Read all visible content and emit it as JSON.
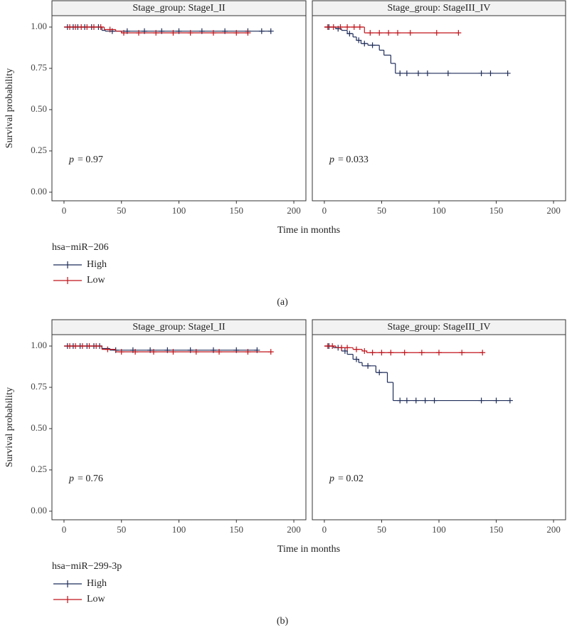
{
  "figures": [
    {
      "caption": "(a)",
      "legend_title": "hsa−miR−206",
      "xlabel": "Time in months",
      "ylabel": "Survival probability"
    },
    {
      "caption": "(b)",
      "legend_title": "hsa−miR−299-3p",
      "xlabel": "Time in months",
      "ylabel": "Survival probability"
    }
  ],
  "chart_data": [
    {
      "type": "step",
      "title": "Stage_group: StageI_II",
      "p_symbol": "p",
      "p_text": "= 0.97",
      "xlim": [
        -10.5,
        210.5
      ],
      "ylim": [
        -0.052,
        1.069
      ],
      "xticks": [
        0,
        50,
        100,
        150,
        200
      ],
      "yticks": [
        {
          "value": 0,
          "label": "0.00"
        },
        {
          "value": 0.25,
          "label": "0.25"
        },
        {
          "value": 0.5,
          "label": "0.50"
        },
        {
          "value": 0.75,
          "label": "0.75"
        },
        {
          "value": 1,
          "label": "1.00"
        }
      ],
      "series": [
        {
          "name": "High",
          "color": "#1f2d5a",
          "x": [
            0,
            33,
            36,
            180
          ],
          "values": [
            1,
            0.98,
            0.975,
            0.975
          ],
          "censor_x": [
            3,
            8,
            12,
            18,
            24,
            30,
            42,
            55,
            70,
            85,
            100,
            120,
            140,
            160,
            172,
            180
          ],
          "censor_y": [
            1,
            1,
            1,
            1,
            1,
            1,
            0.975,
            0.975,
            0.975,
            0.975,
            0.975,
            0.975,
            0.975,
            0.975,
            0.975,
            0.975
          ]
        },
        {
          "name": "Low",
          "color": "#c0141b",
          "x": [
            0,
            35,
            45,
            50,
            160
          ],
          "values": [
            1,
            0.985,
            0.975,
            0.965,
            0.965
          ],
          "censor_x": [
            5,
            10,
            15,
            20,
            26,
            32,
            40,
            52,
            65,
            80,
            95,
            110,
            130,
            150,
            160
          ],
          "censor_y": [
            1,
            1,
            1,
            1,
            1,
            1,
            0.985,
            0.965,
            0.965,
            0.965,
            0.965,
            0.965,
            0.965,
            0.965,
            0.965
          ]
        }
      ]
    },
    {
      "type": "step",
      "title": "Stage_group: StageIII_IV",
      "p_symbol": "p",
      "p_text": "= 0.033",
      "xlim": [
        -10.5,
        210.5
      ],
      "ylim": [
        -0.052,
        1.069
      ],
      "xticks": [
        0,
        50,
        100,
        150,
        200
      ],
      "series": [
        {
          "name": "High",
          "color": "#1f2d5a",
          "x": [
            0,
            10,
            15,
            20,
            25,
            28,
            32,
            38,
            48,
            52,
            58,
            62,
            160
          ],
          "values": [
            1,
            0.99,
            0.98,
            0.96,
            0.94,
            0.92,
            0.9,
            0.89,
            0.86,
            0.83,
            0.78,
            0.72,
            0.72
          ],
          "censor_x": [
            4,
            12,
            22,
            30,
            35,
            42,
            66,
            72,
            82,
            90,
            108,
            137,
            145,
            160
          ],
          "censor_y": [
            1,
            0.99,
            0.96,
            0.92,
            0.9,
            0.89,
            0.72,
            0.72,
            0.72,
            0.72,
            0.72,
            0.72,
            0.72,
            0.72
          ]
        },
        {
          "name": "Low",
          "color": "#c0141b",
          "x": [
            0,
            35,
            117
          ],
          "values": [
            1,
            0.965,
            0.965
          ],
          "censor_x": [
            3,
            8,
            14,
            20,
            26,
            31,
            40,
            48,
            56,
            64,
            75,
            98,
            117
          ],
          "censor_y": [
            1,
            1,
            1,
            1,
            1,
            1,
            0.965,
            0.965,
            0.965,
            0.965,
            0.965,
            0.965,
            0.965
          ]
        }
      ]
    },
    {
      "type": "step",
      "title": "Stage_group: StageI_II",
      "p_symbol": "p",
      "p_text": "= 0.76",
      "xlim": [
        -10.5,
        210.5
      ],
      "ylim": [
        -0.052,
        1.069
      ],
      "xticks": [
        0,
        50,
        100,
        150,
        200
      ],
      "yticks": [
        {
          "value": 0,
          "label": "0.00"
        },
        {
          "value": 0.25,
          "label": "0.25"
        },
        {
          "value": 0.5,
          "label": "0.50"
        },
        {
          "value": 0.75,
          "label": "0.75"
        },
        {
          "value": 1,
          "label": "1.00"
        }
      ],
      "series": [
        {
          "name": "High",
          "color": "#1f2d5a",
          "x": [
            0,
            33,
            40,
            168
          ],
          "values": [
            1,
            0.985,
            0.975,
            0.975
          ],
          "censor_x": [
            3,
            8,
            14,
            20,
            26,
            31,
            45,
            60,
            75,
            90,
            110,
            130,
            150,
            168
          ],
          "censor_y": [
            1,
            1,
            1,
            1,
            1,
            1,
            0.975,
            0.975,
            0.975,
            0.975,
            0.975,
            0.975,
            0.975,
            0.975
          ]
        },
        {
          "name": "Low",
          "color": "#c0141b",
          "x": [
            0,
            33,
            45,
            180
          ],
          "values": [
            1,
            0.98,
            0.965,
            0.965
          ],
          "censor_x": [
            5,
            10,
            16,
            22,
            28,
            38,
            50,
            62,
            78,
            95,
            115,
            135,
            160,
            180
          ],
          "censor_y": [
            1,
            1,
            1,
            1,
            1,
            0.98,
            0.965,
            0.965,
            0.965,
            0.965,
            0.965,
            0.965,
            0.965,
            0.965
          ]
        }
      ]
    },
    {
      "type": "step",
      "title": "Stage_group: StageIII_IV",
      "p_symbol": "p",
      "p_text": "= 0.02",
      "xlim": [
        -10.5,
        210.5
      ],
      "ylim": [
        -0.052,
        1.069
      ],
      "xticks": [
        0,
        50,
        100,
        150,
        200
      ],
      "series": [
        {
          "name": "High",
          "color": "#1f2d5a",
          "x": [
            0,
            8,
            15,
            20,
            25,
            30,
            33,
            45,
            55,
            60,
            162
          ],
          "values": [
            1,
            0.99,
            0.97,
            0.95,
            0.92,
            0.9,
            0.88,
            0.84,
            0.78,
            0.67,
            0.67
          ],
          "censor_x": [
            4,
            12,
            18,
            28,
            38,
            48,
            66,
            72,
            80,
            88,
            96,
            137,
            150,
            162
          ],
          "censor_y": [
            1,
            0.99,
            0.97,
            0.92,
            0.88,
            0.84,
            0.67,
            0.67,
            0.67,
            0.67,
            0.67,
            0.67,
            0.67,
            0.67
          ]
        },
        {
          "name": "Low",
          "color": "#c0141b",
          "x": [
            0,
            10,
            25,
            33,
            37,
            138
          ],
          "values": [
            1,
            0.99,
            0.98,
            0.97,
            0.96,
            0.96
          ],
          "censor_x": [
            3,
            7,
            15,
            20,
            28,
            35,
            42,
            50,
            58,
            70,
            85,
            100,
            120,
            138
          ],
          "censor_y": [
            1,
            1,
            0.99,
            0.99,
            0.98,
            0.97,
            0.96,
            0.96,
            0.96,
            0.96,
            0.96,
            0.96,
            0.96,
            0.96
          ]
        }
      ]
    }
  ]
}
